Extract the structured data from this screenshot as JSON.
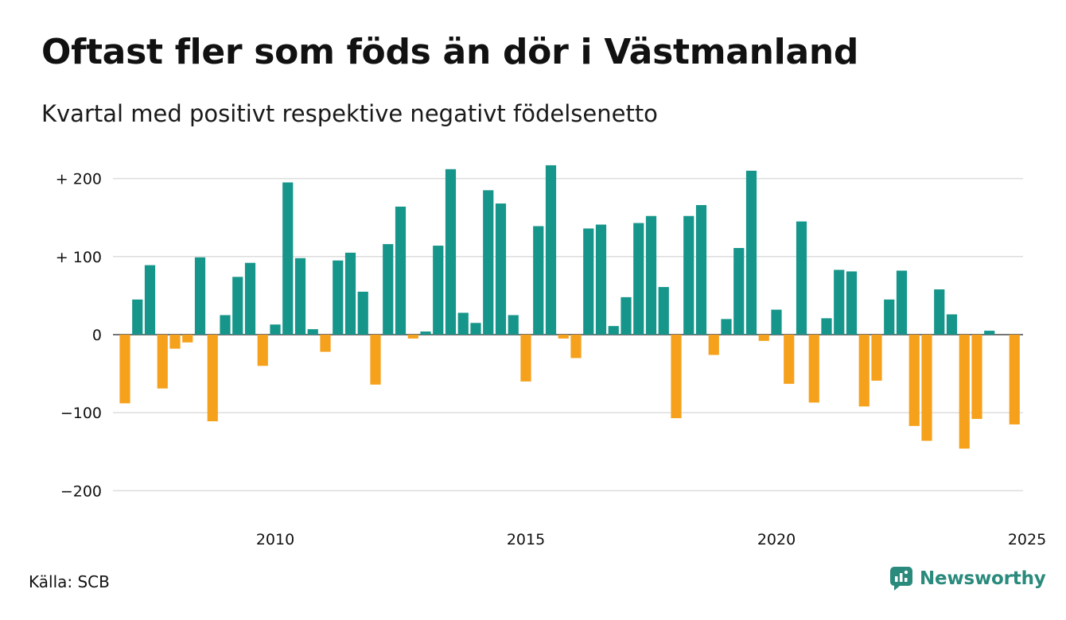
{
  "title": "Oftast fler som föds än dör i Västmanland",
  "subtitle": "Kvartal med positivt respektive negativt födelsenetto",
  "source": "Källa: SCB",
  "brand": {
    "name": "Newsworthy",
    "icon": "newsworthy-logo-icon"
  },
  "colors": {
    "positive": "#16968a",
    "negative": "#f6a11c",
    "grid": "#dddddd"
  },
  "chart_data": {
    "type": "bar",
    "start": "2007 Q1",
    "frequency": "quarterly",
    "xlim": [
      "2007 Q1",
      "2025 Q1"
    ],
    "ylim": [
      -230,
      230
    ],
    "grid": true,
    "y_ticks": [
      200,
      100,
      0,
      -100,
      -200
    ],
    "y_tick_labels": [
      "+ 200",
      "+ 100",
      "0",
      "−100",
      "−200"
    ],
    "x_ticks": [
      2010,
      2015,
      2020,
      2025
    ],
    "x_tick_labels": [
      "2010",
      "2015",
      "2020",
      "2025"
    ],
    "values": [
      -88,
      45,
      89,
      -69,
      -18,
      -10,
      99,
      -111,
      25,
      74,
      92,
      -40,
      13,
      195,
      98,
      7,
      -22,
      95,
      105,
      55,
      -64,
      116,
      164,
      -5,
      4,
      114,
      212,
      28,
      15,
      185,
      168,
      25,
      -60,
      139,
      217,
      -5,
      -30,
      136,
      141,
      11,
      48,
      143,
      152,
      61,
      -107,
      152,
      166,
      -26,
      20,
      111,
      210,
      -8,
      32,
      -63,
      145,
      -87,
      21,
      83,
      81,
      -92,
      -59,
      45,
      82,
      -117,
      -136,
      58,
      26,
      -146,
      -108,
      5,
      0,
      -115
    ]
  }
}
